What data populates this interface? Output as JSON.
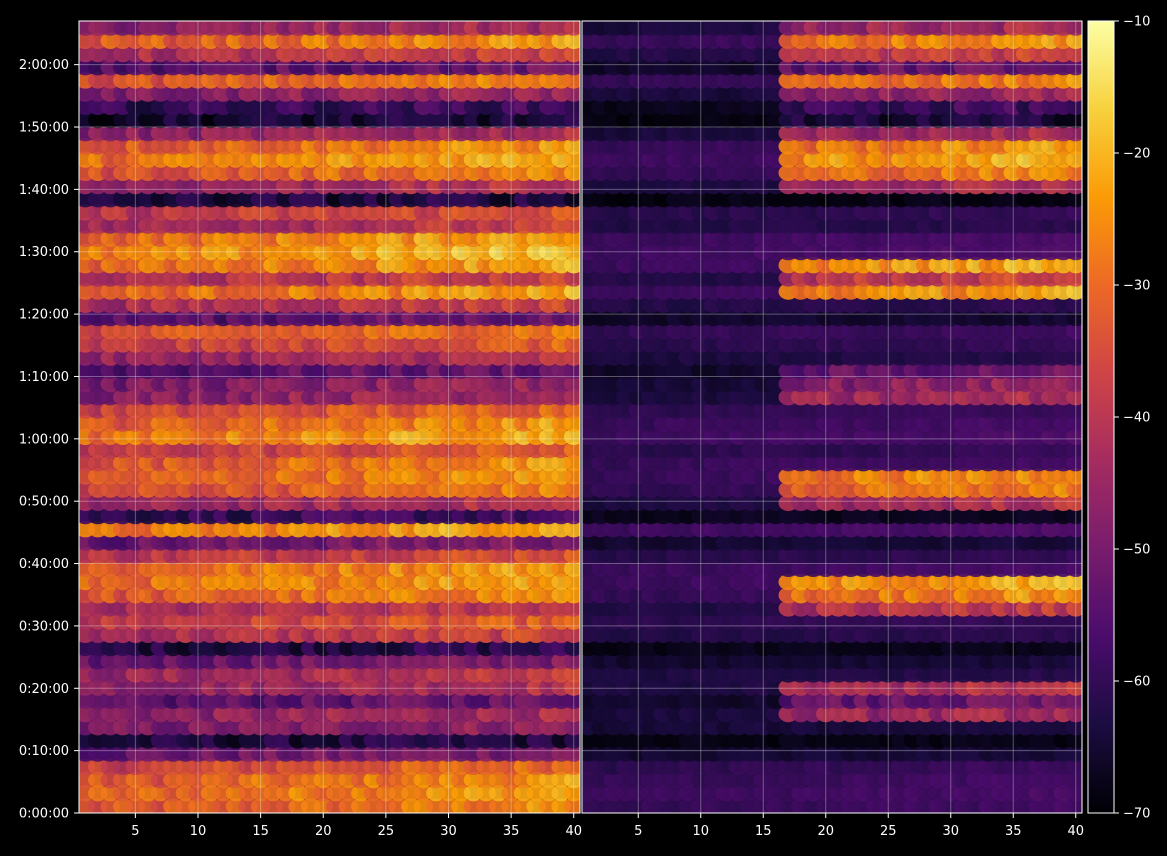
{
  "chart_data": {
    "type": "heatmap",
    "title": "",
    "xlabel": "",
    "ylabel": "",
    "background": "#000000",
    "colormap": "inferno",
    "colormap_stops": [
      "#000004",
      "#1b0c41",
      "#4a0c6b",
      "#781c6d",
      "#a52c60",
      "#cf4446",
      "#ed6925",
      "#fb9b06",
      "#f7d13d",
      "#fcffa4"
    ],
    "grid": true,
    "grid_color": "#ffffff",
    "panels": [
      {
        "name": "left",
        "x_range": [
          1,
          40
        ],
        "x_ticks": [
          5,
          10,
          15,
          20,
          25,
          30,
          35,
          40
        ],
        "gap_bins": [],
        "gap_columns": []
      },
      {
        "name": "right",
        "x_range": [
          1,
          40
        ],
        "x_ticks": [
          5,
          10,
          15,
          20,
          25,
          30,
          35,
          40
        ],
        "gap_bins": [
          [
            0,
            6
          ],
          [
            10,
            14
          ],
          [
            18,
            22
          ],
          [
            26,
            30
          ],
          [
            34,
            38
          ],
          [
            42,
            46
          ]
        ],
        "gap_columns": [
          [
            1,
            16
          ]
        ]
      }
    ],
    "y_range_minutes": [
      0,
      127
    ],
    "y_ticks": [
      "0:00:00",
      "0:10:00",
      "0:20:00",
      "0:30:00",
      "0:40:00",
      "0:50:00",
      "1:00:00",
      "1:10:00",
      "1:20:00",
      "1:30:00",
      "1:40:00",
      "1:50:00",
      "2:00:00"
    ],
    "time_bins": 60,
    "row_levels": [
      0.72,
      0.78,
      0.74,
      0.66,
      0.35,
      0.12,
      0.4,
      0.45,
      0.3,
      0.48,
      0.5,
      0.35,
      0.15,
      0.55,
      0.62,
      0.52,
      0.74,
      0.8,
      0.78,
      0.6,
      0.35,
      0.82,
      0.2,
      0.48,
      0.7,
      0.75,
      0.74,
      0.62,
      0.82,
      0.76,
      0.66,
      0.45,
      0.4,
      0.3,
      0.48,
      0.62,
      0.7,
      0.3,
      0.55,
      0.78,
      0.55,
      0.8,
      0.85,
      0.8,
      0.52,
      0.6,
      0.12,
      0.48,
      0.72,
      0.82,
      0.75,
      0.45,
      0.1,
      0.2,
      0.42,
      0.72,
      0.3,
      0.55,
      0.75,
      0.45
    ],
    "colorbar": {
      "range": [
        -70,
        -10
      ],
      "ticks": [
        -70,
        -60,
        -50,
        -40,
        -30,
        -20,
        -10
      ],
      "tick_labels": [
        "−70",
        "−60",
        "−50",
        "−40",
        "−30",
        "−20",
        "−10"
      ]
    }
  }
}
